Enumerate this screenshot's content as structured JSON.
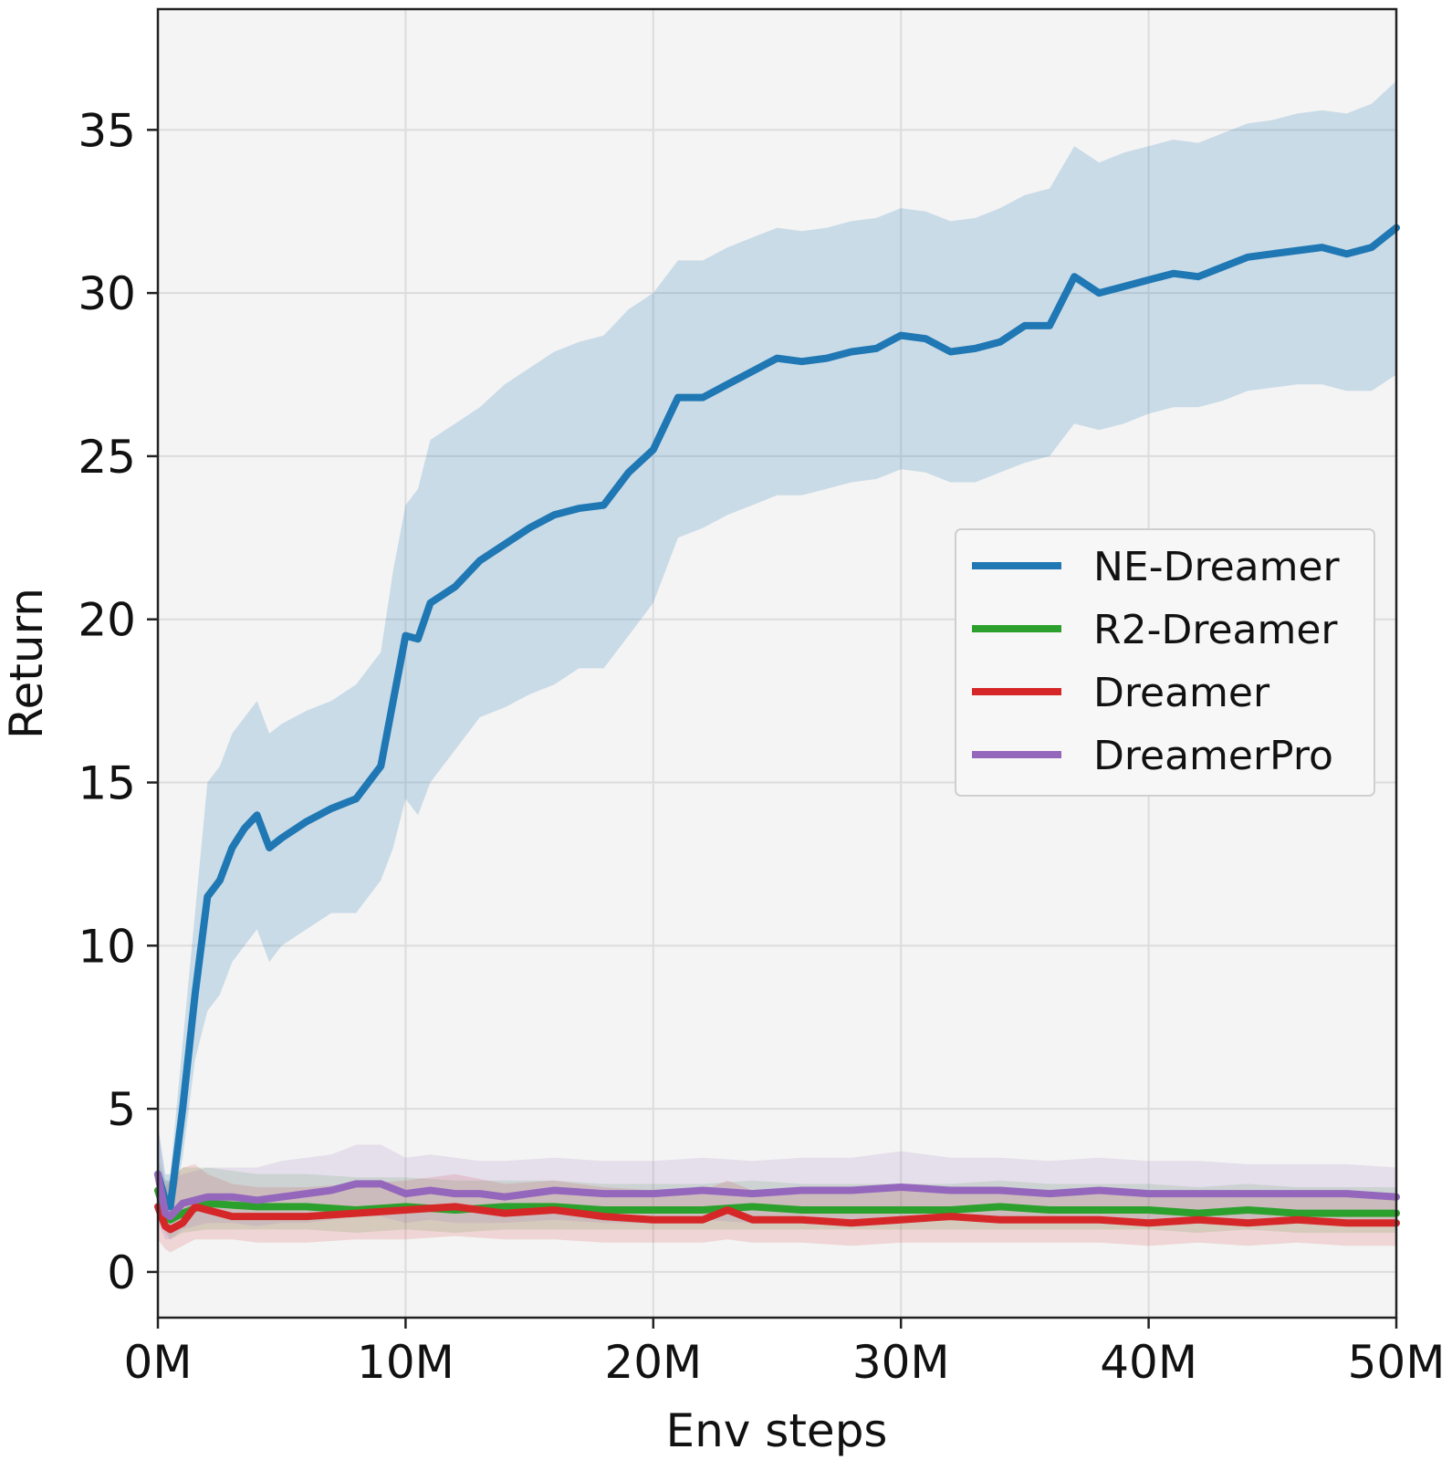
{
  "chart_data": {
    "type": "line",
    "title": "",
    "xlabel": "Env steps",
    "ylabel": "Return",
    "xlim": [
      0,
      50
    ],
    "ylim": [
      -1.4,
      38.7
    ],
    "x_unit": "M",
    "x_ticks": [
      0,
      10,
      20,
      30,
      40,
      50
    ],
    "x_tick_labels": [
      "0M",
      "10M",
      "20M",
      "30M",
      "40M",
      "50M"
    ],
    "y_ticks": [
      0,
      5,
      10,
      15,
      20,
      25,
      30,
      35
    ],
    "y_tick_labels": [
      "0",
      "5",
      "10",
      "15",
      "20",
      "25",
      "30",
      "35"
    ],
    "grid": true,
    "legend_position": "center-right",
    "background": "#f4f4f4",
    "series": [
      {
        "name": "NE-Dreamer",
        "color": "#1f77b4",
        "x": [
          0,
          0.3,
          0.5,
          1,
          1.5,
          2,
          2.5,
          3,
          3.5,
          4,
          4.5,
          5,
          6,
          7,
          8,
          9,
          9.5,
          10,
          10.5,
          11,
          12,
          13,
          14,
          15,
          16,
          17,
          18,
          19,
          20,
          21,
          22,
          23,
          24,
          25,
          26,
          27,
          28,
          29,
          30,
          31,
          32,
          33,
          34,
          35,
          36,
          37,
          38,
          39,
          40,
          41,
          42,
          43,
          44,
          45,
          46,
          47,
          48,
          49,
          50
        ],
        "values": [
          3.0,
          2.2,
          2.0,
          5.0,
          8.5,
          11.5,
          12.0,
          13.0,
          13.6,
          14.0,
          13.0,
          13.3,
          13.8,
          14.2,
          14.5,
          15.5,
          17.5,
          19.5,
          19.4,
          20.5,
          21.0,
          21.8,
          22.3,
          22.8,
          23.2,
          23.4,
          23.5,
          24.5,
          25.2,
          26.8,
          26.8,
          27.2,
          27.6,
          28.0,
          27.9,
          28.0,
          28.2,
          28.3,
          28.7,
          28.6,
          28.2,
          28.3,
          28.5,
          29.0,
          29.0,
          30.5,
          30.0,
          30.2,
          30.4,
          30.6,
          30.5,
          30.8,
          31.1,
          31.2,
          31.3,
          31.4,
          31.2,
          31.4,
          32.0
        ],
        "lower": [
          1.5,
          1.5,
          1.5,
          3.5,
          6.5,
          8.0,
          8.5,
          9.5,
          10.0,
          10.5,
          9.5,
          10.0,
          10.5,
          11.0,
          11.0,
          12.0,
          13.0,
          14.5,
          14.0,
          15.0,
          16.0,
          17.0,
          17.3,
          17.7,
          18.0,
          18.5,
          18.5,
          19.5,
          20.5,
          22.5,
          22.8,
          23.2,
          23.5,
          23.8,
          23.8,
          24.0,
          24.2,
          24.3,
          24.6,
          24.5,
          24.2,
          24.2,
          24.5,
          24.8,
          25.0,
          26.0,
          25.8,
          26.0,
          26.3,
          26.5,
          26.5,
          26.7,
          27.0,
          27.1,
          27.2,
          27.2,
          27.0,
          27.0,
          27.5
        ],
        "upper": [
          4.5,
          3.0,
          3.0,
          7.0,
          11.0,
          15.0,
          15.5,
          16.5,
          17.0,
          17.5,
          16.5,
          16.8,
          17.2,
          17.5,
          18.0,
          19.0,
          21.5,
          23.5,
          24.0,
          25.5,
          26.0,
          26.5,
          27.2,
          27.7,
          28.2,
          28.5,
          28.7,
          29.5,
          30.0,
          31.0,
          31.0,
          31.4,
          31.7,
          32.0,
          31.9,
          32.0,
          32.2,
          32.3,
          32.6,
          32.5,
          32.2,
          32.3,
          32.6,
          33.0,
          33.2,
          34.5,
          34.0,
          34.3,
          34.5,
          34.7,
          34.6,
          34.9,
          35.2,
          35.3,
          35.5,
          35.6,
          35.5,
          35.8,
          36.5
        ]
      },
      {
        "name": "R2-Dreamer",
        "color": "#2ca02c",
        "x": [
          0,
          0.3,
          0.5,
          1,
          2,
          4,
          6,
          8,
          10,
          12,
          14,
          16,
          18,
          20,
          22,
          24,
          26,
          28,
          30,
          32,
          34,
          36,
          38,
          40,
          42,
          44,
          46,
          48,
          50
        ],
        "values": [
          2.5,
          1.8,
          1.6,
          1.8,
          2.1,
          2.0,
          2.0,
          1.9,
          2.0,
          1.9,
          2.0,
          2.0,
          1.9,
          1.9,
          1.9,
          2.0,
          1.9,
          1.9,
          1.9,
          1.9,
          2.0,
          1.9,
          1.9,
          1.9,
          1.8,
          1.9,
          1.8,
          1.8,
          1.8
        ],
        "lower": [
          1.8,
          1.2,
          1.0,
          1.2,
          1.3,
          1.3,
          1.3,
          1.2,
          1.3,
          1.2,
          1.3,
          1.3,
          1.3,
          1.3,
          1.3,
          1.3,
          1.3,
          1.3,
          1.3,
          1.3,
          1.3,
          1.3,
          1.3,
          1.3,
          1.2,
          1.3,
          1.2,
          1.2,
          1.2
        ],
        "upper": [
          3.5,
          2.8,
          2.8,
          3.2,
          3.2,
          3.0,
          3.0,
          2.9,
          2.9,
          2.8,
          2.8,
          2.8,
          2.7,
          2.7,
          2.7,
          2.8,
          2.7,
          2.7,
          2.7,
          2.7,
          2.8,
          2.7,
          2.7,
          2.7,
          2.6,
          2.7,
          2.6,
          2.6,
          2.6
        ]
      },
      {
        "name": "Dreamer",
        "color": "#d62728",
        "x": [
          0,
          0.3,
          0.5,
          1,
          1.5,
          2,
          3,
          4,
          6,
          8,
          10,
          12,
          14,
          16,
          18,
          20,
          22,
          23,
          24,
          26,
          28,
          30,
          32,
          34,
          36,
          38,
          40,
          42,
          44,
          46,
          48,
          50
        ],
        "values": [
          2.0,
          1.4,
          1.3,
          1.5,
          2.0,
          1.9,
          1.7,
          1.7,
          1.7,
          1.8,
          1.9,
          2.0,
          1.8,
          1.9,
          1.7,
          1.6,
          1.6,
          1.9,
          1.6,
          1.6,
          1.5,
          1.6,
          1.7,
          1.6,
          1.6,
          1.6,
          1.5,
          1.6,
          1.5,
          1.6,
          1.5,
          1.5
        ],
        "lower": [
          1.0,
          0.7,
          0.6,
          0.8,
          1.0,
          1.0,
          1.0,
          0.9,
          0.9,
          1.0,
          1.0,
          1.1,
          1.0,
          1.0,
          0.9,
          0.9,
          0.9,
          1.0,
          0.9,
          0.9,
          0.8,
          0.9,
          0.9,
          0.9,
          0.9,
          0.9,
          0.8,
          0.9,
          0.8,
          0.9,
          0.8,
          0.8
        ],
        "upper": [
          3.2,
          2.6,
          2.8,
          3.2,
          3.3,
          3.0,
          2.7,
          2.6,
          2.6,
          2.7,
          2.8,
          3.0,
          2.7,
          2.8,
          2.6,
          2.5,
          2.5,
          2.8,
          2.5,
          2.5,
          2.4,
          2.5,
          2.6,
          2.5,
          2.5,
          2.5,
          2.4,
          2.5,
          2.4,
          2.5,
          2.4,
          2.4
        ]
      },
      {
        "name": "DreamerPro",
        "color": "#9467bd",
        "x": [
          0,
          0.3,
          0.5,
          1,
          2,
          3,
          4,
          5,
          6,
          7,
          8,
          9,
          10,
          11,
          12,
          13,
          14,
          16,
          18,
          20,
          22,
          24,
          26,
          28,
          30,
          32,
          34,
          36,
          38,
          40,
          42,
          44,
          46,
          48,
          50
        ],
        "values": [
          3.0,
          1.8,
          1.7,
          2.1,
          2.3,
          2.3,
          2.2,
          2.3,
          2.4,
          2.5,
          2.7,
          2.7,
          2.4,
          2.5,
          2.4,
          2.4,
          2.3,
          2.5,
          2.4,
          2.4,
          2.5,
          2.4,
          2.5,
          2.5,
          2.6,
          2.5,
          2.5,
          2.4,
          2.5,
          2.4,
          2.4,
          2.4,
          2.4,
          2.4,
          2.3
        ],
        "lower": [
          1.5,
          1.0,
          1.0,
          1.3,
          1.5,
          1.5,
          1.4,
          1.5,
          1.5,
          1.6,
          1.7,
          1.7,
          1.5,
          1.6,
          1.5,
          1.5,
          1.5,
          1.6,
          1.5,
          1.5,
          1.6,
          1.5,
          1.6,
          1.6,
          1.7,
          1.6,
          1.6,
          1.5,
          1.6,
          1.5,
          1.5,
          1.5,
          1.5,
          1.5,
          1.5
        ],
        "upper": [
          4.5,
          2.8,
          2.8,
          3.0,
          3.2,
          3.2,
          3.2,
          3.4,
          3.5,
          3.6,
          3.9,
          3.9,
          3.5,
          3.6,
          3.5,
          3.4,
          3.4,
          3.5,
          3.4,
          3.4,
          3.5,
          3.4,
          3.5,
          3.5,
          3.7,
          3.5,
          3.5,
          3.4,
          3.5,
          3.4,
          3.4,
          3.3,
          3.3,
          3.3,
          3.2
        ]
      }
    ]
  }
}
